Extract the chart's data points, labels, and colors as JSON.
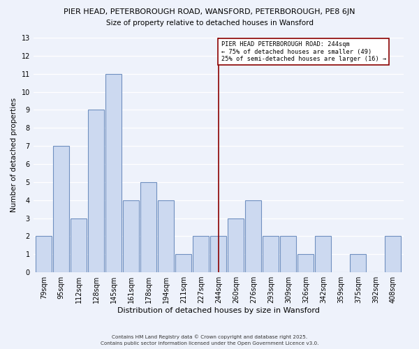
{
  "title_line1": "PIER HEAD, PETERBOROUGH ROAD, WANSFORD, PETERBOROUGH, PE8 6JN",
  "title_line2": "Size of property relative to detached houses in Wansford",
  "xlabel": "Distribution of detached houses by size in Wansford",
  "ylabel": "Number of detached properties",
  "background_color": "#eef2fb",
  "bar_color": "#ccd9f0",
  "bar_edge_color": "#7090c0",
  "bin_labels": [
    "79sqm",
    "95sqm",
    "112sqm",
    "128sqm",
    "145sqm",
    "161sqm",
    "178sqm",
    "194sqm",
    "211sqm",
    "227sqm",
    "244sqm",
    "260sqm",
    "276sqm",
    "293sqm",
    "309sqm",
    "326sqm",
    "342sqm",
    "359sqm",
    "375sqm",
    "392sqm",
    "408sqm"
  ],
  "counts": [
    2,
    7,
    3,
    9,
    11,
    4,
    5,
    4,
    1,
    2,
    2,
    3,
    4,
    2,
    2,
    1,
    2,
    0,
    1,
    0,
    2
  ],
  "ylim": [
    0,
    13
  ],
  "yticks": [
    0,
    1,
    2,
    3,
    4,
    5,
    6,
    7,
    8,
    9,
    10,
    11,
    12,
    13
  ],
  "property_line_idx": 10,
  "property_line_color": "#8b0000",
  "annotation_title": "PIER HEAD PETERBOROUGH ROAD: 244sqm",
  "annotation_line1": "← 75% of detached houses are smaller (49)",
  "annotation_line2": "25% of semi-detached houses are larger (16) →",
  "footer_line1": "Contains HM Land Registry data © Crown copyright and database right 2025.",
  "footer_line2": "Contains public sector information licensed under the Open Government Licence v3.0."
}
